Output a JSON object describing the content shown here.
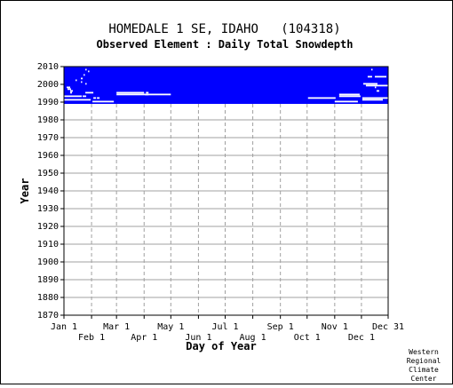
{
  "chart_data": {
    "type": "heatmap",
    "title": "HOMEDALE 1 SE, IDAHO   (104318)",
    "subtitle": "Observed Element : Daily Total Snowdepth",
    "xlabel": "Day of Year",
    "ylabel": "Year",
    "x_ticks_top": [
      "Jan 1",
      "Mar 1",
      "May 1",
      "Jul 1",
      "Sep 1",
      "Nov 1",
      "Dec 31"
    ],
    "x_ticks_bottom": [
      "Feb 1",
      "Apr 1",
      "Jun 1",
      "Aug 1",
      "Oct 1",
      "Dec 1"
    ],
    "x_tick_days": [
      1,
      32,
      60,
      91,
      121,
      152,
      182,
      213,
      244,
      274,
      305,
      335,
      365
    ],
    "xlim": [
      1,
      365
    ],
    "ylim": [
      1870,
      2010
    ],
    "y_ticks": [
      2010,
      2000,
      1990,
      1980,
      1970,
      1960,
      1950,
      1940,
      1930,
      1920,
      1910,
      1900,
      1890,
      1880,
      1870
    ],
    "grid": true,
    "data_color": "#0000ff",
    "data_block": {
      "x": [
        1,
        365
      ],
      "y": [
        1989,
        2010
      ]
    },
    "missing_segments": [
      {
        "year": 2008,
        "days": [
          25,
          25
        ]
      },
      {
        "year": 2007,
        "days": [
          28,
          28
        ]
      },
      {
        "year": 2005,
        "days": [
          23,
          23
        ]
      },
      {
        "year": 2003,
        "days": [
          20,
          21
        ]
      },
      {
        "year": 2002,
        "days": [
          14,
          14
        ]
      },
      {
        "year": 2001,
        "days": [
          20,
          20
        ]
      },
      {
        "year": 2000,
        "days": [
          25,
          25
        ]
      },
      {
        "year": 1998,
        "days": [
          4,
          7
        ]
      },
      {
        "year": 1997,
        "days": [
          5,
          8
        ]
      },
      {
        "year": 1996,
        "days": [
          8,
          10
        ]
      },
      {
        "year": 1995,
        "days": [
          8,
          9
        ]
      },
      {
        "year": 1995,
        "days": [
          25,
          33
        ]
      },
      {
        "year": 1995,
        "days": [
          60,
          90
        ]
      },
      {
        "year": 1995,
        "days": [
          93,
          95
        ]
      },
      {
        "year": 1994,
        "days": [
          60,
          95
        ]
      },
      {
        "year": 1994,
        "days": [
          92,
          120
        ]
      },
      {
        "year": 1994,
        "days": [
          310,
          332
        ]
      },
      {
        "year": 1993,
        "days": [
          1,
          20
        ]
      },
      {
        "year": 1993,
        "days": [
          22,
          25
        ]
      },
      {
        "year": 1993,
        "days": [
          310,
          333
        ]
      },
      {
        "year": 1992,
        "days": [
          34,
          36
        ]
      },
      {
        "year": 1992,
        "days": [
          38,
          40
        ]
      },
      {
        "year": 1992,
        "days": [
          275,
          305
        ]
      },
      {
        "year": 1992,
        "days": [
          336,
          365
        ]
      },
      {
        "year": 1991,
        "days": [
          1,
          30
        ]
      },
      {
        "year": 1991,
        "days": [
          336,
          358
        ]
      },
      {
        "year": 1990,
        "days": [
          33,
          56
        ]
      },
      {
        "year": 1990,
        "days": [
          305,
          330
        ]
      },
      {
        "year": 2004,
        "days": [
          342,
          346
        ]
      },
      {
        "year": 2004,
        "days": [
          350,
          362
        ]
      },
      {
        "year": 2008,
        "days": [
          346,
          346
        ]
      },
      {
        "year": 2000,
        "days": [
          337,
          352
        ]
      },
      {
        "year": 1999,
        "days": [
          340,
          365
        ]
      },
      {
        "year": 1998,
        "days": [
          350,
          350
        ]
      },
      {
        "year": 1996,
        "days": [
          352,
          354
        ]
      }
    ]
  },
  "credit": [
    "Western",
    "Regional",
    "Climate",
    "Center"
  ]
}
